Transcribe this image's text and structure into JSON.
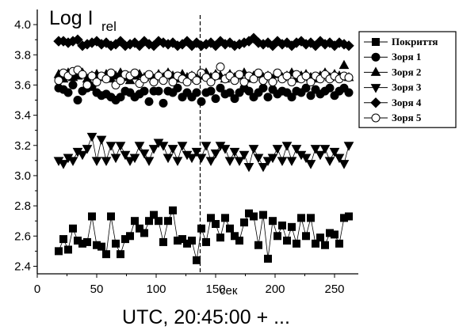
{
  "chart_data": {
    "type": "scatter",
    "ylabel_main": "Log I",
    "ylabel_sub": "rel",
    "x_unit": "сек",
    "xlabel": "UTC, 20:45:00 + ...",
    "xlim": [
      0,
      270
    ],
    "ylim": [
      2.35,
      4.1
    ],
    "x_ticks": [
      0,
      50,
      100,
      150,
      200,
      250
    ],
    "y_ticks": [
      2.4,
      2.6,
      2.8,
      3.0,
      3.2,
      3.4,
      3.6,
      3.8,
      4.0
    ],
    "y_tick_labels": [
      "2.4",
      "2.6",
      "2.8",
      "3.0",
      "3.2",
      "3.4",
      "3.6",
      "3.8",
      "4.0"
    ],
    "vline_x": 137,
    "x": [
      18,
      22,
      26,
      30,
      34,
      38,
      42,
      46,
      50,
      54,
      58,
      62,
      66,
      70,
      74,
      78,
      82,
      86,
      90,
      94,
      98,
      102,
      106,
      110,
      114,
      118,
      122,
      126,
      130,
      134,
      138,
      142,
      146,
      150,
      154,
      158,
      162,
      166,
      170,
      174,
      178,
      182,
      186,
      190,
      194,
      198,
      202,
      206,
      210,
      214,
      218,
      222,
      226,
      230,
      234,
      238,
      242,
      246,
      250,
      254,
      258,
      262
    ],
    "series": [
      {
        "name": "Покриття",
        "marker": "square",
        "filled": true,
        "connect": true,
        "values": [
          2.5,
          2.58,
          2.51,
          2.65,
          2.57,
          2.55,
          2.56,
          2.73,
          2.54,
          2.53,
          2.48,
          2.73,
          2.55,
          2.48,
          2.58,
          2.6,
          2.7,
          2.65,
          2.62,
          2.7,
          2.74,
          2.7,
          2.56,
          2.7,
          2.77,
          2.57,
          2.58,
          2.55,
          2.57,
          2.44,
          2.65,
          2.56,
          2.72,
          2.68,
          2.59,
          2.72,
          2.65,
          2.6,
          2.57,
          2.69,
          2.75,
          2.73,
          2.54,
          2.74,
          2.45,
          2.7,
          2.6,
          2.67,
          2.57,
          2.66,
          2.55,
          2.72,
          2.6,
          2.72,
          2.55,
          2.59,
          2.54,
          2.62,
          2.61,
          2.55,
          2.72,
          2.73
        ]
      },
      {
        "name": "Зоря 1",
        "marker": "circle",
        "filled": true,
        "connect": false,
        "values": [
          3.58,
          3.57,
          3.55,
          3.6,
          3.5,
          3.56,
          3.58,
          3.59,
          3.55,
          3.53,
          3.54,
          3.52,
          3.5,
          3.52,
          3.56,
          3.55,
          3.52,
          3.54,
          3.56,
          3.49,
          3.56,
          3.56,
          3.48,
          3.56,
          3.55,
          3.58,
          3.52,
          3.55,
          3.52,
          3.55,
          3.49,
          3.55,
          3.56,
          3.51,
          3.58,
          3.54,
          3.55,
          3.51,
          3.55,
          3.58,
          3.56,
          3.52,
          3.55,
          3.58,
          3.52,
          3.57,
          3.54,
          3.56,
          3.55,
          3.52,
          3.56,
          3.55,
          3.58,
          3.53,
          3.57,
          3.54,
          3.56,
          3.58,
          3.53,
          3.56,
          3.58,
          3.55
        ]
      },
      {
        "name": "Зоря 2",
        "marker": "triangle-up",
        "filled": true,
        "connect": false,
        "values": [
          3.67,
          3.64,
          3.68,
          3.65,
          3.66,
          3.68,
          3.64,
          3.66,
          3.67,
          3.65,
          3.67,
          3.64,
          3.66,
          3.68,
          3.65,
          3.63,
          3.66,
          3.67,
          3.65,
          3.66,
          3.64,
          3.67,
          3.65,
          3.68,
          3.66,
          3.64,
          3.67,
          3.65,
          3.66,
          3.64,
          3.66,
          3.68,
          3.65,
          3.67,
          3.66,
          3.64,
          3.67,
          3.65,
          3.66,
          3.68,
          3.64,
          3.66,
          3.67,
          3.65,
          3.66,
          3.64,
          3.67,
          3.65,
          3.66,
          3.68,
          3.64,
          3.66,
          3.67,
          3.65,
          3.64,
          3.66,
          3.68,
          3.65,
          3.67,
          3.66,
          3.73,
          3.65
        ]
      },
      {
        "name": "Зоря 3",
        "marker": "triangle-down",
        "filled": true,
        "connect": true,
        "values": [
          3.1,
          3.08,
          3.12,
          3.1,
          3.16,
          3.14,
          3.18,
          3.26,
          3.1,
          3.24,
          3.1,
          3.2,
          3.12,
          3.2,
          3.14,
          3.1,
          3.12,
          3.2,
          3.15,
          3.1,
          3.18,
          3.22,
          3.2,
          3.12,
          3.18,
          3.1,
          3.2,
          3.14,
          3.12,
          3.16,
          3.12,
          3.2,
          3.1,
          3.15,
          3.2,
          3.18,
          3.1,
          3.16,
          3.1,
          3.14,
          3.06,
          3.18,
          3.12,
          3.06,
          3.1,
          3.12,
          3.18,
          3.1,
          3.2,
          3.1,
          3.18,
          3.14,
          3.12,
          3.08,
          3.18,
          3.14,
          3.18,
          3.1,
          3.16,
          3.12,
          3.08,
          3.2
        ]
      },
      {
        "name": "Зоря 4",
        "marker": "diamond",
        "filled": true,
        "connect": true,
        "values": [
          3.89,
          3.89,
          3.88,
          3.89,
          3.9,
          3.86,
          3.87,
          3.88,
          3.89,
          3.87,
          3.88,
          3.86,
          3.87,
          3.89,
          3.86,
          3.87,
          3.88,
          3.86,
          3.89,
          3.87,
          3.86,
          3.89,
          3.88,
          3.87,
          3.88,
          3.86,
          3.87,
          3.89,
          3.86,
          3.88,
          3.86,
          3.87,
          3.88,
          3.86,
          3.89,
          3.87,
          3.88,
          3.86,
          3.87,
          3.88,
          3.89,
          3.91,
          3.88,
          3.87,
          3.88,
          3.86,
          3.89,
          3.87,
          3.88,
          3.86,
          3.88,
          3.89,
          3.87,
          3.88,
          3.86,
          3.89,
          3.87,
          3.88,
          3.86,
          3.88,
          3.87,
          3.86
        ]
      },
      {
        "name": "Зоря 5",
        "marker": "circle",
        "filled": false,
        "connect": false,
        "values": [
          3.63,
          3.68,
          3.66,
          3.69,
          3.7,
          3.67,
          3.6,
          3.66,
          3.62,
          3.66,
          3.64,
          3.68,
          3.6,
          3.63,
          3.67,
          3.66,
          3.68,
          3.61,
          3.64,
          3.67,
          3.62,
          3.66,
          3.63,
          3.67,
          3.62,
          3.66,
          3.64,
          3.62,
          3.66,
          3.63,
          3.68,
          3.65,
          3.62,
          3.66,
          3.72,
          3.64,
          3.66,
          3.63,
          3.67,
          3.62,
          3.66,
          3.64,
          3.68,
          3.63,
          3.66,
          3.62,
          3.68,
          3.64,
          3.66,
          3.62,
          3.67,
          3.64,
          3.66,
          3.62,
          3.66,
          3.64,
          3.67,
          3.64,
          3.66,
          3.64,
          3.66,
          3.65
        ]
      }
    ]
  }
}
